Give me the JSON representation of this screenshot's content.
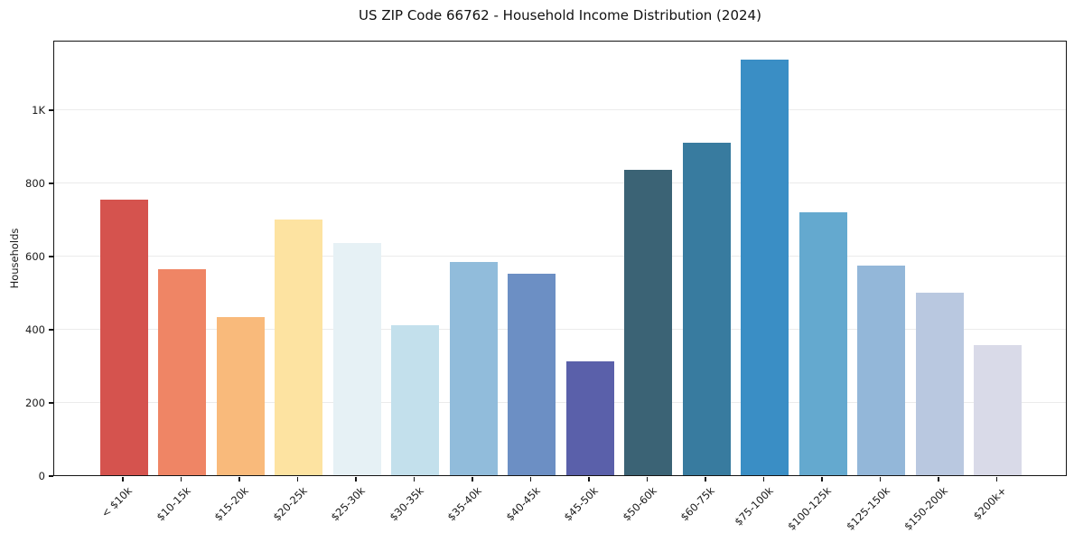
{
  "chart_data": {
    "type": "bar",
    "title": "US ZIP Code 66762 - Household Income Distribution (2024)",
    "xlabel": "",
    "ylabel": "Households",
    "categories": [
      "< $10k",
      "$10-15k",
      "$15-20k",
      "$20-25k",
      "$25-30k",
      "$30-35k",
      "$35-40k",
      "$40-45k",
      "$45-50k",
      "$50-60k",
      "$60-75k",
      "$75-100k",
      "$100-125k",
      "$125-150k",
      "$150-200k",
      "$200k+"
    ],
    "values": [
      752,
      563,
      432,
      698,
      634,
      410,
      583,
      551,
      311,
      834,
      909,
      1136,
      719,
      573,
      499,
      356
    ],
    "bar_colors": [
      "#d5534e",
      "#ef8565",
      "#f9ba7b",
      "#fde3a1",
      "#e6f1f5",
      "#c3e0ec",
      "#91bcdb",
      "#6c8fc4",
      "#5a60aa",
      "#3b6375",
      "#387b9f",
      "#3a8ec5",
      "#64a9cf",
      "#93b7d9",
      "#b9c8e0",
      "#d9dae8"
    ],
    "ylim": [
      0,
      1190
    ],
    "yticks": [
      {
        "value": 0,
        "label": "0"
      },
      {
        "value": 200,
        "label": "200"
      },
      {
        "value": 400,
        "label": "400"
      },
      {
        "value": 600,
        "label": "600"
      },
      {
        "value": 800,
        "label": "800"
      },
      {
        "value": 1000,
        "label": "1K"
      }
    ],
    "grid": "horizontal",
    "legend": "none",
    "background_color": "#ffffff",
    "grid_color": "#ebebeb",
    "text_color": "#1a1a1a"
  }
}
